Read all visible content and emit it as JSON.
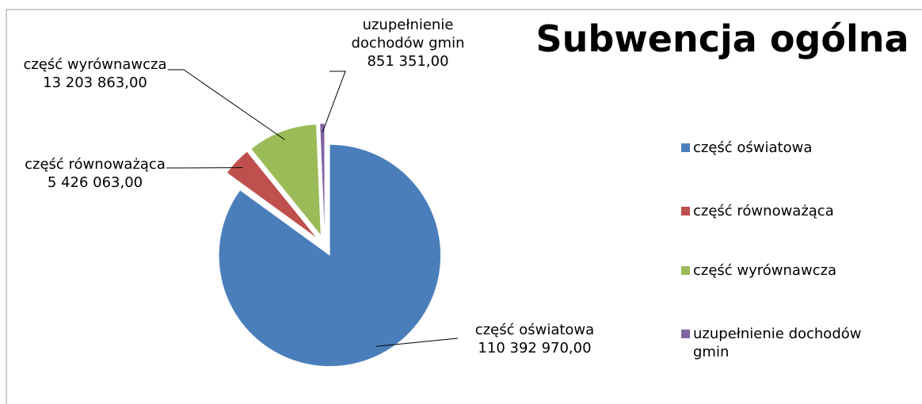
{
  "chart_data": {
    "type": "pie",
    "title": "Subwencja ogólna",
    "categories": [
      "część oświatowa",
      "część równoważąca",
      "część wyrównawcza",
      "uzupełnienie dochodów gmin"
    ],
    "values": [
      110392970,
      5426063,
      13203863,
      851351
    ],
    "value_labels": [
      "110 392 970,00",
      "5 426 063,00",
      "13 203 863,00",
      "851 351,00"
    ],
    "colors": [
      "#4a7ebb",
      "#c0504d",
      "#9bbb59",
      "#8064a2"
    ],
    "legend": "right"
  }
}
